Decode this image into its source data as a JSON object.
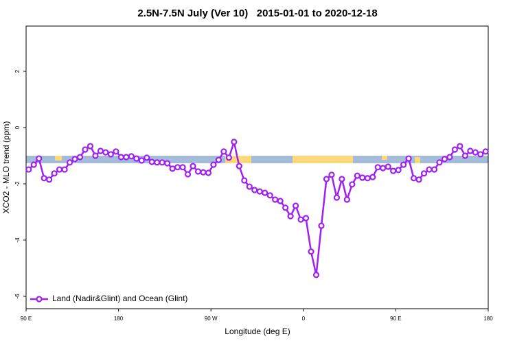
{
  "chart_data": {
    "type": "line",
    "title": "2.5N-7.5N July (Ver 10)   2015-01-01 to 2020-12-18",
    "x_label": "Longitude (deg E)",
    "y_label": "XCO2 - MLO trend (ppm)",
    "xlim": [
      90,
      540
    ],
    "xticks": [
      {
        "value": 90,
        "label": "90 E"
      },
      {
        "value": 180,
        "label": "180"
      },
      {
        "value": 270,
        "label": "90 W"
      },
      {
        "value": 360,
        "label": "0"
      },
      {
        "value": 450,
        "label": "90 E"
      },
      {
        "value": 540,
        "label": "180"
      }
    ],
    "ylim": [
      -6.44,
      3.61
    ],
    "yticks": [
      -6,
      -4,
      -2,
      0,
      2
    ],
    "legend_position": "bottom-left",
    "x": [
      92.5,
      97.5,
      102.5,
      107.5,
      112.5,
      117.5,
      122.5,
      127.5,
      132.5,
      137.5,
      142.5,
      147.5,
      152.5,
      157.5,
      162.5,
      167.5,
      172.5,
      177.5,
      182.5,
      187.5,
      192.5,
      197.5,
      202.5,
      207.5,
      212.5,
      217.5,
      222.5,
      227.5,
      232.5,
      237.5,
      242.5,
      247.5,
      252.5,
      257.5,
      262.5,
      267.5,
      272.5,
      277.5,
      282.5,
      287.5,
      292.5,
      297.5,
      302.5,
      307.5,
      312.5,
      317.5,
      322.5,
      327.5,
      332.5,
      337.5,
      342.5,
      347.5,
      352.5,
      357.5,
      362.5,
      367.5,
      372.5,
      377.5,
      382.5,
      387.5,
      392.5,
      397.5,
      402.5,
      407.5,
      412.5,
      417.5,
      422.5,
      427.5,
      432.5,
      437.5,
      442.5,
      447.5,
      452.5,
      457.5,
      462.5,
      467.5,
      472.5,
      477.5,
      482.5,
      487.5,
      492.5,
      497.5,
      502.5,
      507.5,
      512.5,
      517.5,
      522.5,
      527.5,
      532.5,
      537.5
    ],
    "series": [
      {
        "name": "Land (Nadir&Glint) and Ocean (Glint)",
        "color": "#a020f0",
        "values": [
          -1.49,
          -1.32,
          -1.1,
          -1.8,
          -1.85,
          -1.63,
          -1.49,
          -1.49,
          -1.24,
          -1.12,
          -1.05,
          -0.78,
          -0.66,
          -1.0,
          -0.83,
          -0.88,
          -0.95,
          -0.85,
          -1.05,
          -1.05,
          -1.02,
          -1.1,
          -1.17,
          -1.07,
          -1.22,
          -1.24,
          -1.24,
          -1.27,
          -1.46,
          -1.41,
          -1.41,
          -1.66,
          -1.37,
          -1.56,
          -1.59,
          -1.61,
          -1.32,
          -1.15,
          -0.85,
          -1.07,
          -0.51,
          -1.37,
          -1.88,
          -2.1,
          -2.22,
          -2.27,
          -2.32,
          -2.41,
          -2.56,
          -2.61,
          -2.85,
          -3.15,
          -2.78,
          -3.27,
          -3.22,
          -4.41,
          -5.24,
          -3.49,
          -1.83,
          -1.68,
          -2.49,
          -1.83,
          -2.56,
          -2.02,
          -1.71,
          -1.78,
          -1.8,
          -1.76,
          -1.41,
          -1.44,
          -1.39,
          -1.54,
          -1.51,
          -1.32,
          -1.1,
          -1.8,
          -1.85,
          -1.63,
          -1.49,
          -1.49,
          -1.24,
          -1.12,
          -1.05,
          -0.78,
          -0.66,
          -1.0,
          -0.83,
          -0.88,
          -0.95,
          -0.85
        ]
      }
    ]
  }
}
